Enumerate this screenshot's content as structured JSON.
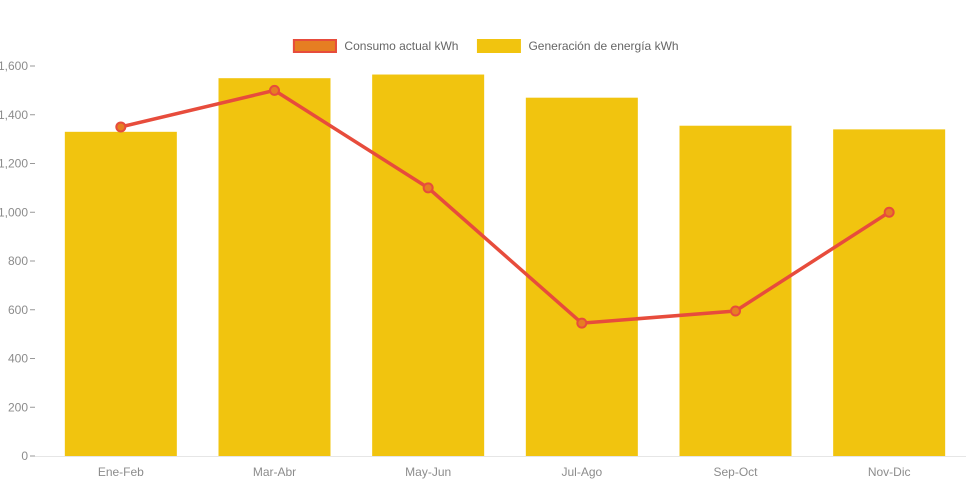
{
  "chart": {
    "background_color": "#ffffff",
    "legend_position": "top-center"
  },
  "chart_data": {
    "type": "combo",
    "categories": [
      "Ene-Feb",
      "Mar-Abr",
      "May-Jun",
      "Jul-Ago",
      "Sep-Oct",
      "Nov-Dic"
    ],
    "series": [
      {
        "name": "Consumo actual kWh",
        "type": "line",
        "color": "#e74c3c",
        "marker_fill": "#e67e22",
        "values": [
          1350,
          1500,
          1100,
          545,
          595,
          1000
        ]
      },
      {
        "name": "Generación de energía kWh",
        "type": "bar",
        "color": "#f1c40f",
        "values": [
          1330,
          1550,
          1565,
          1470,
          1355,
          1340
        ]
      }
    ],
    "title": "",
    "xlabel": "",
    "ylabel": "",
    "ylim": [
      0,
      1600
    ],
    "ytick_step": 200,
    "ytick_labels": [
      "0",
      "200",
      "400",
      "600",
      "800",
      "1,000",
      "1,200",
      "1,400",
      "1,600"
    ],
    "grid": false,
    "legend_position": "top-center",
    "axis_label_color": "#8c8c8c",
    "axis_tick_color": "#999999",
    "axis_line_color": "#e6e6e6",
    "legend_text_color": "#666666"
  }
}
